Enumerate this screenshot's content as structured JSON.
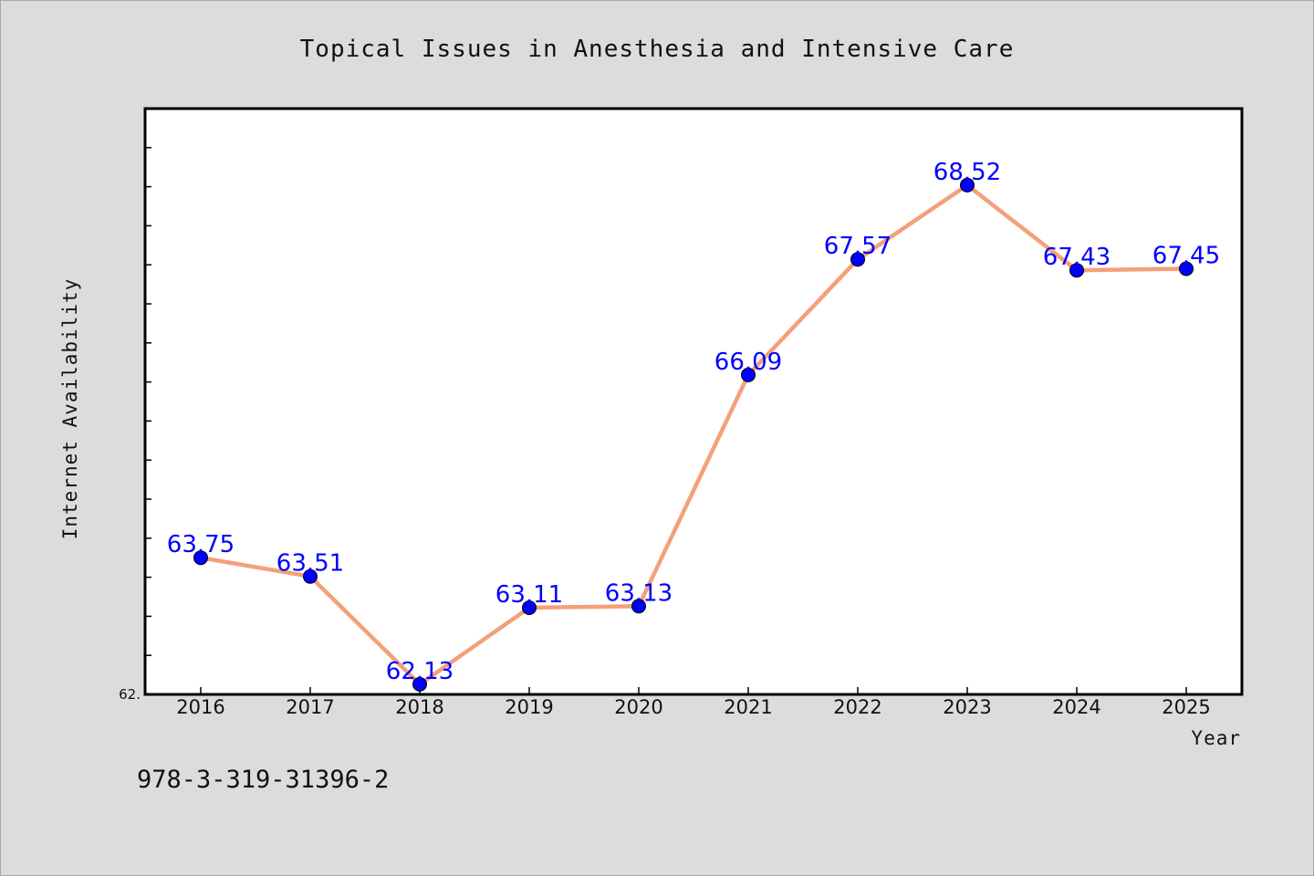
{
  "chart_data": {
    "type": "line",
    "title": "Topical Issues in Anesthesia and Intensive Care",
    "xlabel": "Year",
    "ylabel": "Internet Availability",
    "categories": [
      "2016",
      "2017",
      "2018",
      "2019",
      "2020",
      "2021",
      "2022",
      "2023",
      "2024",
      "2025"
    ],
    "series": [
      {
        "values": [
          63.75,
          63.51,
          62.13,
          63.11,
          63.13,
          66.09,
          67.57,
          68.52,
          67.43,
          67.45
        ],
        "labels": [
          "63.75",
          "63.51",
          "62.13",
          "63.11",
          "63.13",
          "66.09",
          "67.57",
          "68.52",
          "67.43",
          "67.45"
        ],
        "line_color": "#f4a07a",
        "marker_color": "#0000ff"
      }
    ],
    "ylim": [
      62.0,
      69.5
    ],
    "y_min_label": "62.",
    "grid": false,
    "legend": "none"
  },
  "footer": {
    "isbn": "978-3-319-31396-2"
  },
  "colors": {
    "background": "#dcdcdc",
    "plot_background": "#ffffff",
    "axis": "#000000"
  }
}
